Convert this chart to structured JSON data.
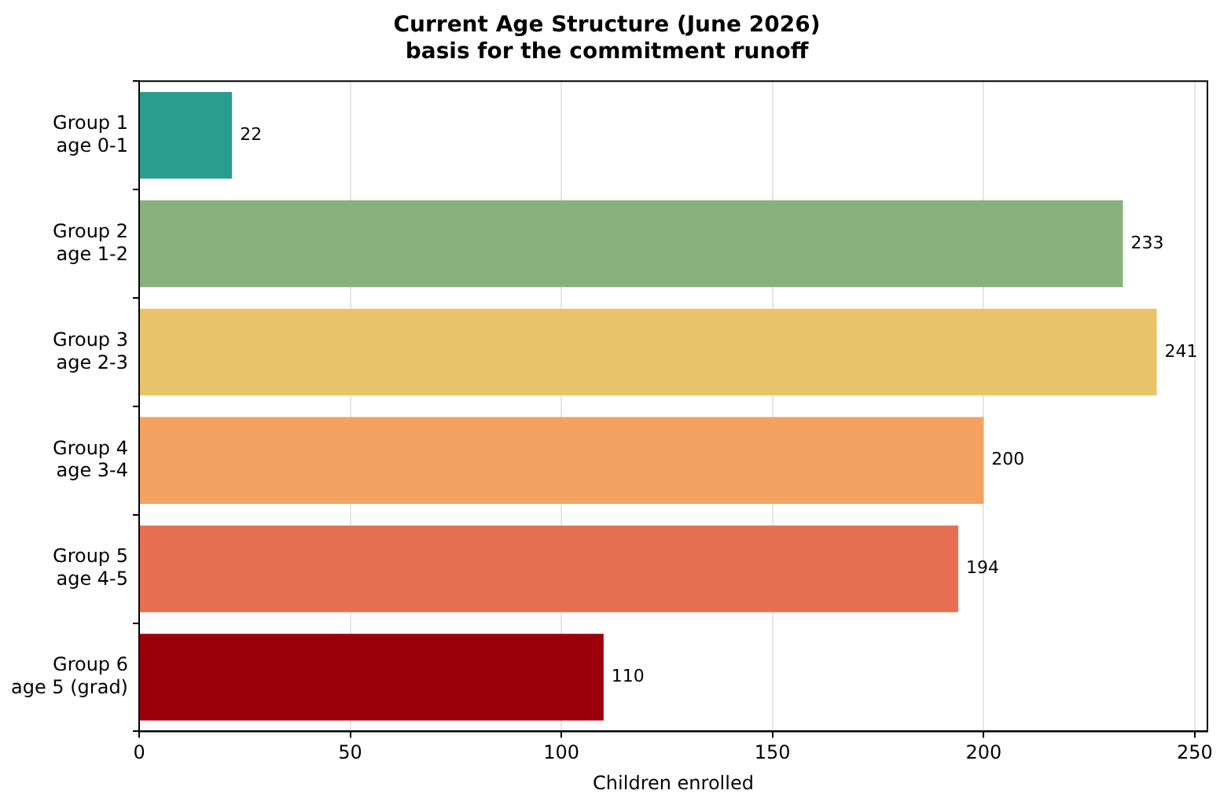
{
  "chart_data": {
    "type": "bar",
    "orientation": "horizontal",
    "title": "Current Age Structure (June 2026)\nbasis for the commitment runoff",
    "xlabel": "Children enrolled",
    "categories": [
      "Group 1\nage 0-1",
      "Group 2\nage 1-2",
      "Group 3\nage 2-3",
      "Group 4\nage 3-4",
      "Group 5\nage 4-5",
      "Group 6\nage 5 (grad)"
    ],
    "values": [
      22,
      233,
      241,
      200,
      194,
      110
    ],
    "colors": [
      "#2a9d8f",
      "#8ab17d",
      "#e9c46a",
      "#f4a261",
      "#e76f51",
      "#9b000a"
    ],
    "xlim": [
      0,
      253
    ],
    "xticks": [
      0,
      50,
      100,
      150,
      200,
      250
    ],
    "grid": "x",
    "data_labels": true,
    "legend": false
  }
}
